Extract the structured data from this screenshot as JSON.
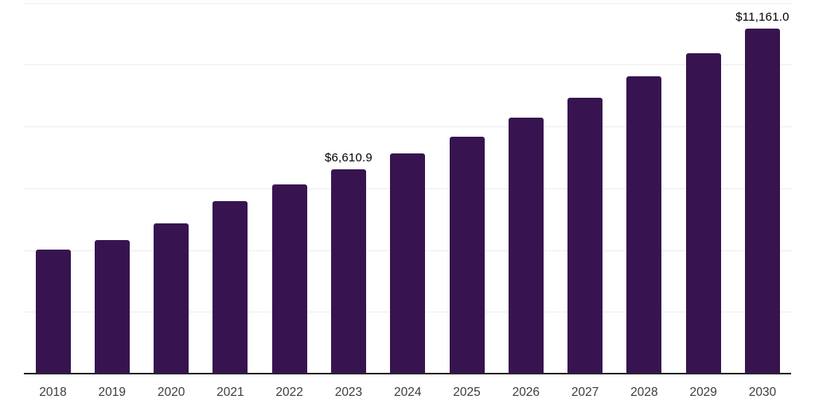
{
  "chart_data": {
    "type": "bar",
    "title": "",
    "xlabel": "",
    "ylabel": "",
    "categories": [
      "2018",
      "2019",
      "2020",
      "2021",
      "2022",
      "2023",
      "2024",
      "2025",
      "2026",
      "2027",
      "2028",
      "2029",
      "2030"
    ],
    "values": [
      4010,
      4325,
      4855,
      5580,
      6120,
      6610.9,
      7124.6,
      7678.3,
      8275.0,
      8918.2,
      9611.4,
      10358.4,
      11161.0
    ],
    "value_labels": [
      {
        "category": "2023",
        "text": "$6,610.9"
      },
      {
        "category": "2030",
        "text": "$11,161.0"
      }
    ],
    "ylim": [
      0,
      12000
    ],
    "gridline_step": 2000,
    "grid": "horizontal",
    "y_tick_labels_visible": false,
    "legend": "none"
  },
  "colors": {
    "bar": "#371450",
    "axis_line": "#262626",
    "gridline": "#ededed",
    "value_label_text": "#000000",
    "tick_label_text": "#3d3d3d",
    "background": "#ffffff"
  }
}
